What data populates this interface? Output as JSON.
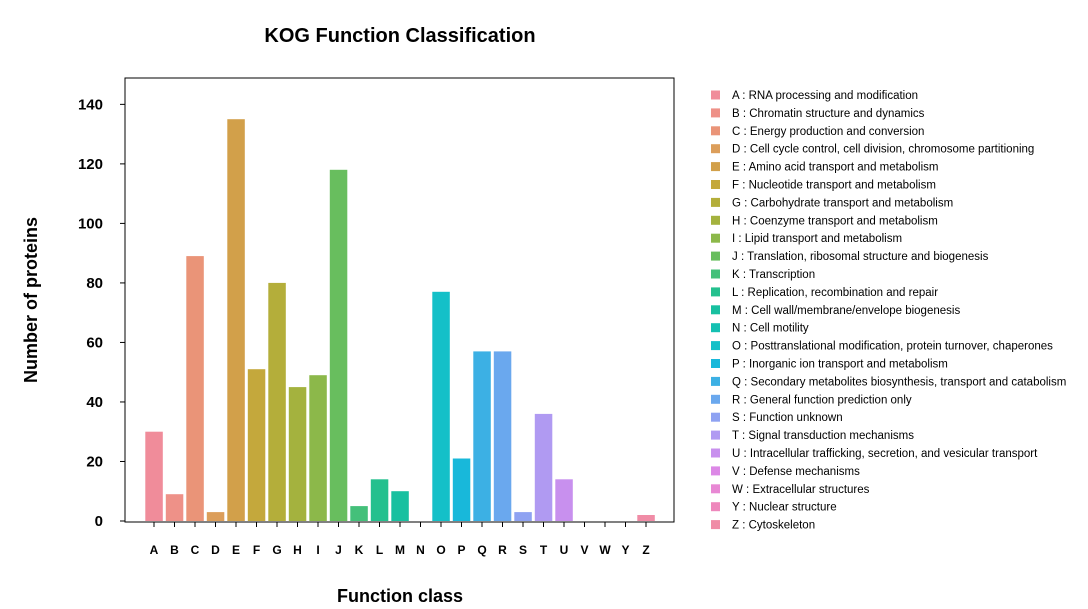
{
  "chart_data": {
    "type": "bar",
    "title": "KOG Function Classification",
    "xlabel": "Function class",
    "ylabel": "Number of proteins",
    "ylim": [
      0,
      150
    ],
    "yticks": [
      0,
      20,
      40,
      60,
      80,
      100,
      120,
      140
    ],
    "grid": false,
    "legend_position": "right",
    "categories": [
      "A",
      "B",
      "C",
      "D",
      "E",
      "F",
      "G",
      "H",
      "I",
      "J",
      "K",
      "L",
      "M",
      "N",
      "O",
      "P",
      "Q",
      "R",
      "S",
      "T",
      "U",
      "V",
      "W",
      "Y",
      "Z"
    ],
    "values": [
      30,
      9,
      89,
      3,
      135,
      51,
      80,
      45,
      49,
      118,
      5,
      14,
      10,
      0,
      77,
      21,
      57,
      57,
      3,
      36,
      14,
      0,
      0,
      0,
      2
    ],
    "colors": [
      "#F08C9A",
      "#EE9188",
      "#EA9478",
      "#DC9E5A",
      "#D2A04A",
      "#C4A83C",
      "#B4AE3A",
      "#A4B23E",
      "#8CB84A",
      "#68BE5E",
      "#44C07A",
      "#24C08E",
      "#18C0A0",
      "#14C0B2",
      "#14C0C8",
      "#18B8DA",
      "#3CB0E4",
      "#6AA8EE",
      "#8EA2F2",
      "#B09AF2",
      "#C890EE",
      "#DC88E6",
      "#E888D4",
      "#EE88BC",
      "#F08CA6"
    ],
    "legend": [
      "A :  RNA processing and modification",
      "B :  Chromatin structure and dynamics",
      "C :  Energy production and conversion",
      "D :  Cell cycle control, cell division, chromosome partitioning",
      "E :  Amino acid transport and metabolism",
      "F :  Nucleotide transport and metabolism",
      "G :  Carbohydrate transport and metabolism",
      "H :  Coenzyme transport and metabolism",
      "I :  Lipid transport and metabolism",
      "J :  Translation, ribosomal structure and biogenesis",
      "K :  Transcription",
      "L :  Replication, recombination and repair",
      "M :  Cell wall/membrane/envelope biogenesis",
      "N :  Cell motility",
      "O :  Posttranslational modification, protein turnover, chaperones",
      "P :  Inorganic ion transport and metabolism",
      "Q :  Secondary metabolites biosynthesis, transport and catabolism",
      "R :  General function prediction only",
      "S :  Function unknown",
      "T :  Signal transduction mechanisms",
      "U :  Intracellular trafficking, secretion, and vesicular transport",
      "V :  Defense mechanisms",
      "W :  Extracellular structures",
      "Y :  Nuclear structure",
      "Z :  Cytoskeleton"
    ]
  }
}
